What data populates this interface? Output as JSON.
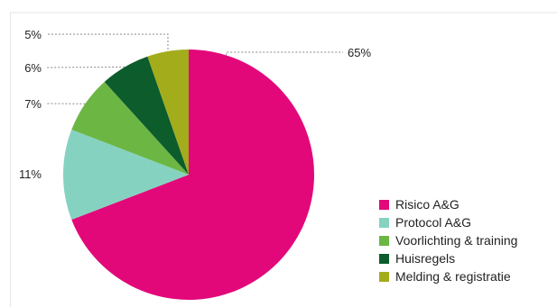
{
  "chart_data": {
    "type": "pie",
    "categories": [
      "Risico A&G",
      "Protocol A&G",
      "Voorlichting & training",
      "Huisregels",
      "Melding & registratie"
    ],
    "values": [
      65,
      11,
      7,
      6,
      5
    ],
    "labels": [
      "65%",
      "11%",
      "7%",
      "6%",
      "5%"
    ],
    "colors": [
      "#e2087a",
      "#86d2c0",
      "#6cb644",
      "#0c5c2c",
      "#a3ac1b"
    ],
    "legend_position": "right",
    "start": "top",
    "direction": "clockwise"
  }
}
